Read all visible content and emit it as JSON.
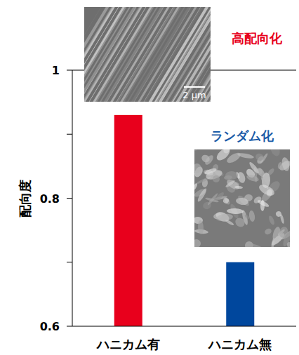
{
  "chart_data": {
    "type": "bar",
    "categories": [
      "ハニカム有",
      "ハニカム無"
    ],
    "values": [
      0.93,
      0.7
    ],
    "colors": [
      "#e8001c",
      "#00479d"
    ],
    "y_label": "配向度",
    "ylim": [
      0.6,
      1
    ],
    "yticks": [
      0.6,
      {
        "value": 0.7,
        "label": null
      },
      0.8,
      {
        "value": 0.9,
        "label": null
      },
      1
    ],
    "annotations": [
      {
        "text": "高配向化",
        "color": "#e8001c"
      },
      {
        "text": "ランダム化",
        "color": "#1a5ba8"
      }
    ],
    "scale_bar": "2 μm"
  }
}
